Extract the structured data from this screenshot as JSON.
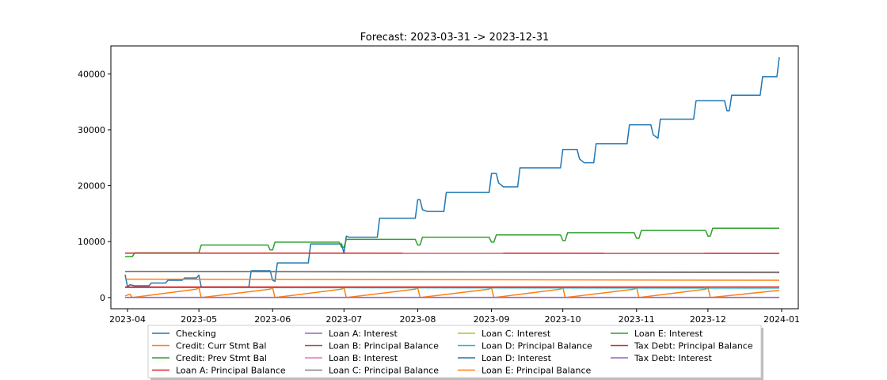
{
  "chart_data": {
    "type": "line",
    "title": "Forecast: 2023-03-31 -> 2023-12-31",
    "xlabel": "",
    "ylabel": "",
    "xlim": [
      "2023-03-25",
      "2024-01-08"
    ],
    "ylim": [
      -2000,
      45000
    ],
    "x_ticks": [
      "2023-04",
      "2023-05",
      "2023-06",
      "2023-07",
      "2023-08",
      "2023-09",
      "2023-10",
      "2023-11",
      "2023-12",
      "2024-01"
    ],
    "y_ticks": [
      0,
      10000,
      20000,
      30000,
      40000
    ],
    "grid": false,
    "legend_position": "bottom-center",
    "legend_columns": 4,
    "series": [
      {
        "name": "Checking",
        "color": "#1f77b4",
        "points": [
          [
            "2023-03-31",
            4100
          ],
          [
            "2023-04-01",
            1900
          ],
          [
            "2023-04-02",
            2300
          ],
          [
            "2023-04-04",
            2100
          ],
          [
            "2023-04-10",
            2100
          ],
          [
            "2023-04-11",
            2600
          ],
          [
            "2023-04-17",
            2600
          ],
          [
            "2023-04-18",
            3100
          ],
          [
            "2023-04-24",
            3100
          ],
          [
            "2023-04-25",
            3500
          ],
          [
            "2023-04-30",
            3500
          ],
          [
            "2023-05-01",
            4000
          ],
          [
            "2023-05-02",
            1900
          ],
          [
            "2023-05-22",
            1900
          ],
          [
            "2023-05-23",
            4800
          ],
          [
            "2023-05-31",
            4800
          ],
          [
            "2023-06-01",
            3100
          ],
          [
            "2023-06-02",
            2900
          ],
          [
            "2023-06-03",
            6200
          ],
          [
            "2023-06-16",
            6200
          ],
          [
            "2023-06-17",
            9600
          ],
          [
            "2023-06-30",
            9600
          ],
          [
            "2023-07-01",
            7900
          ],
          [
            "2023-07-02",
            11000
          ],
          [
            "2023-07-03",
            10800
          ],
          [
            "2023-07-15",
            10800
          ],
          [
            "2023-07-16",
            14200
          ],
          [
            "2023-07-31",
            14200
          ],
          [
            "2023-08-01",
            17500
          ],
          [
            "2023-08-02",
            17500
          ],
          [
            "2023-08-03",
            15700
          ],
          [
            "2023-08-05",
            15400
          ],
          [
            "2023-08-12",
            15400
          ],
          [
            "2023-08-13",
            18800
          ],
          [
            "2023-08-31",
            18800
          ],
          [
            "2023-09-01",
            22200
          ],
          [
            "2023-09-03",
            22200
          ],
          [
            "2023-09-04",
            20500
          ],
          [
            "2023-09-06",
            19800
          ],
          [
            "2023-09-12",
            19800
          ],
          [
            "2023-09-13",
            23200
          ],
          [
            "2023-09-30",
            23200
          ],
          [
            "2023-10-01",
            26500
          ],
          [
            "2023-10-07",
            26500
          ],
          [
            "2023-10-08",
            24800
          ],
          [
            "2023-10-10",
            24100
          ],
          [
            "2023-10-14",
            24100
          ],
          [
            "2023-10-15",
            27500
          ],
          [
            "2023-10-28",
            27500
          ],
          [
            "2023-10-29",
            30900
          ],
          [
            "2023-11-07",
            30900
          ],
          [
            "2023-11-08",
            29100
          ],
          [
            "2023-11-10",
            28500
          ],
          [
            "2023-11-11",
            31900
          ],
          [
            "2023-11-25",
            31900
          ],
          [
            "2023-11-26",
            35200
          ],
          [
            "2023-12-08",
            35200
          ],
          [
            "2023-12-09",
            33400
          ],
          [
            "2023-12-10",
            33400
          ],
          [
            "2023-12-11",
            36200
          ],
          [
            "2023-12-23",
            36200
          ],
          [
            "2023-12-24",
            39500
          ],
          [
            "2023-12-30",
            39500
          ],
          [
            "2023-12-31",
            43000
          ]
        ]
      },
      {
        "name": "Credit: Curr Stmt Bal",
        "color": "#ff7f0e",
        "points": [
          [
            "2023-03-31",
            300
          ],
          [
            "2023-04-02",
            600
          ],
          [
            "2023-04-03",
            0
          ],
          [
            "2023-04-30",
            1500
          ],
          [
            "2023-05-01",
            1800
          ],
          [
            "2023-05-02",
            0
          ],
          [
            "2023-05-31",
            1500
          ],
          [
            "2023-06-01",
            1800
          ],
          [
            "2023-06-02",
            0
          ],
          [
            "2023-06-30",
            1500
          ],
          [
            "2023-07-01",
            1800
          ],
          [
            "2023-07-02",
            0
          ],
          [
            "2023-07-31",
            1500
          ],
          [
            "2023-08-01",
            1800
          ],
          [
            "2023-08-02",
            0
          ],
          [
            "2023-08-31",
            1500
          ],
          [
            "2023-09-01",
            1800
          ],
          [
            "2023-09-02",
            0
          ],
          [
            "2023-09-30",
            1500
          ],
          [
            "2023-10-01",
            1800
          ],
          [
            "2023-10-02",
            0
          ],
          [
            "2023-10-31",
            1500
          ],
          [
            "2023-11-01",
            1800
          ],
          [
            "2023-11-02",
            0
          ],
          [
            "2023-11-30",
            1500
          ],
          [
            "2023-12-01",
            1800
          ],
          [
            "2023-12-02",
            0
          ],
          [
            "2023-12-31",
            1300
          ]
        ]
      },
      {
        "name": "Credit: Prev Stmt Bal",
        "color": "#2ca02c",
        "points": [
          [
            "2023-03-31",
            7300
          ],
          [
            "2023-04-03",
            7300
          ],
          [
            "2023-04-04",
            8000
          ],
          [
            "2023-05-01",
            8000
          ],
          [
            "2023-05-02",
            9400
          ],
          [
            "2023-05-30",
            9400
          ],
          [
            "2023-05-31",
            8500
          ],
          [
            "2023-06-01",
            8500
          ],
          [
            "2023-06-02",
            9900
          ],
          [
            "2023-06-29",
            9900
          ],
          [
            "2023-06-30",
            9000
          ],
          [
            "2023-07-01",
            9000
          ],
          [
            "2023-07-02",
            10400
          ],
          [
            "2023-07-31",
            10400
          ],
          [
            "2023-08-01",
            9400
          ],
          [
            "2023-08-02",
            9400
          ],
          [
            "2023-08-03",
            10800
          ],
          [
            "2023-08-31",
            10800
          ],
          [
            "2023-09-01",
            9900
          ],
          [
            "2023-09-02",
            9900
          ],
          [
            "2023-09-03",
            11200
          ],
          [
            "2023-09-30",
            11200
          ],
          [
            "2023-10-01",
            10200
          ],
          [
            "2023-10-02",
            10200
          ],
          [
            "2023-10-03",
            11600
          ],
          [
            "2023-10-31",
            11600
          ],
          [
            "2023-11-01",
            10600
          ],
          [
            "2023-11-02",
            10600
          ],
          [
            "2023-11-03",
            12000
          ],
          [
            "2023-11-30",
            12000
          ],
          [
            "2023-12-01",
            11000
          ],
          [
            "2023-12-02",
            11000
          ],
          [
            "2023-12-03",
            12400
          ],
          [
            "2023-12-31",
            12400
          ]
        ]
      },
      {
        "name": "Loan A: Principal Balance",
        "color": "#d62728",
        "points": [
          [
            "2023-03-31",
            7950
          ],
          [
            "2023-12-31",
            7900
          ]
        ]
      },
      {
        "name": "Loan A: Interest",
        "color": "#9467bd",
        "points": [
          [
            "2023-03-31",
            40
          ],
          [
            "2023-12-31",
            40
          ]
        ]
      },
      {
        "name": "Loan B: Principal Balance",
        "color": "#8c564b",
        "points": [
          [
            "2023-03-31",
            4700
          ],
          [
            "2023-12-31",
            4550
          ]
        ]
      },
      {
        "name": "Loan B: Interest",
        "color": "#e377c2",
        "points": [
          [
            "2023-03-31",
            20
          ],
          [
            "2023-12-31",
            20
          ]
        ]
      },
      {
        "name": "Loan C: Principal Balance",
        "color": "#7f7f7f",
        "points": [
          [
            "2023-03-31",
            4650
          ],
          [
            "2023-12-31",
            4450
          ]
        ]
      },
      {
        "name": "Loan C: Interest",
        "color": "#bcbd22",
        "points": [
          [
            "2023-03-31",
            15
          ],
          [
            "2023-12-31",
            15
          ]
        ]
      },
      {
        "name": "Loan D: Principal Balance",
        "color": "#17becf",
        "points": [
          [
            "2023-03-31",
            1800
          ],
          [
            "2023-12-31",
            1700
          ]
        ]
      },
      {
        "name": "Loan D: Interest",
        "color": "#1f77b4",
        "points": [
          [
            "2023-03-31",
            10
          ],
          [
            "2023-12-31",
            10
          ]
        ]
      },
      {
        "name": "Loan E: Principal Balance",
        "color": "#ff7f0e",
        "points": [
          [
            "2023-03-31",
            3300
          ],
          [
            "2023-12-31",
            3100
          ]
        ]
      },
      {
        "name": "Loan E: Interest",
        "color": "#2ca02c",
        "points": [
          [
            "2023-03-31",
            15
          ],
          [
            "2023-12-31",
            15
          ]
        ]
      },
      {
        "name": "Tax Debt: Principal Balance",
        "color": "#d62728",
        "points": [
          [
            "2023-03-31",
            1900
          ],
          [
            "2023-12-31",
            1900
          ]
        ]
      },
      {
        "name": "Tax Debt: Interest",
        "color": "#9467bd",
        "points": [
          [
            "2023-03-31",
            5
          ],
          [
            "2023-12-31",
            5
          ]
        ]
      }
    ]
  }
}
